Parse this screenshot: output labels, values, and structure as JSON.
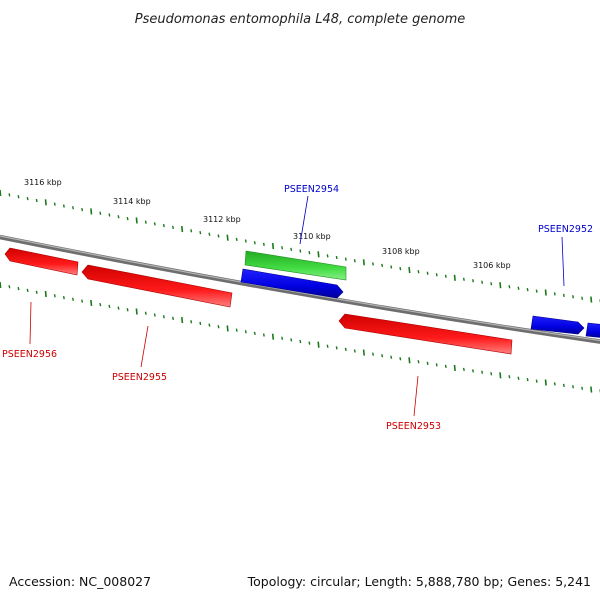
{
  "title": "Pseudomonas entomophila L48, complete genome",
  "footer": {
    "accession": "Accession: NC_008027",
    "summary": "Topology: circular; Length: 5,888,780 bp; Genes: 5,241"
  },
  "colors": {
    "backbone": "#808080",
    "tick": "#1a7a1a",
    "forward_gene": "#2222ee",
    "reverse_gene": "#ee1111",
    "other_gene": "#33cc33",
    "forward_label": "#0000cc",
    "reverse_label": "#cc0000"
  },
  "scale_ticks": [
    "3116 kbp",
    "3114 kbp",
    "3112 kbp",
    "3110 kbp",
    "3108 kbp",
    "3106 kbp"
  ],
  "genes": [
    {
      "name": "PSEEN2956",
      "strand": "reverse",
      "labeled": true
    },
    {
      "name": "PSEEN2955",
      "strand": "reverse",
      "labeled": true
    },
    {
      "name": "PSEEN2954",
      "strand": "forward",
      "labeled": true
    },
    {
      "name": "",
      "strand": "forward",
      "type": "other",
      "labeled": false
    },
    {
      "name": "PSEEN2953",
      "strand": "reverse",
      "labeled": true
    },
    {
      "name": "PSEEN2952",
      "strand": "forward",
      "labeled": true
    },
    {
      "name": "",
      "strand": "forward",
      "labeled": false
    }
  ]
}
